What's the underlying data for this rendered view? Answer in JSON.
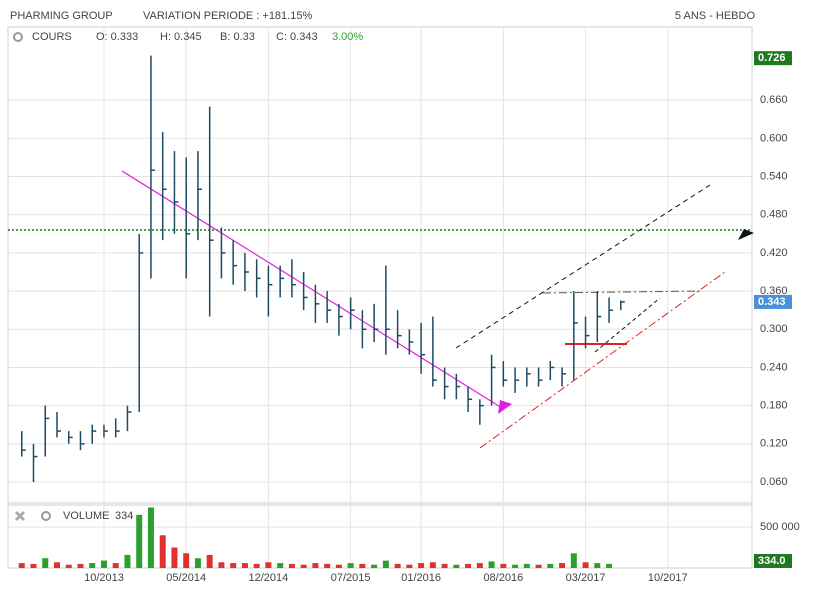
{
  "header": {
    "title": "PHARMING GROUP",
    "variation": "VARIATION PERIODE : +181.15%",
    "period": "5 ANS - HEBDO"
  },
  "chart_data": [
    {
      "type": "ohlc",
      "legend": {
        "name": "COURS",
        "open": "O: 0.333",
        "high": "H: 0.345",
        "low": "B: 0.33",
        "close": "C: 0.343",
        "change": "3.00%"
      },
      "x": [
        "03/2013",
        "04/2013",
        "05/2013",
        "06/2013",
        "07/2013",
        "08/2013",
        "09/2013",
        "10/2013",
        "11/2013",
        "12/2013",
        "01/2014",
        "02/2014",
        "03/2014",
        "04/2014",
        "05/2014",
        "06/2014",
        "07/2014",
        "08/2014",
        "09/2014",
        "10/2014",
        "11/2014",
        "12/2014",
        "01/2015",
        "02/2015",
        "03/2015",
        "04/2015",
        "05/2015",
        "06/2015",
        "07/2015",
        "08/2015",
        "09/2015",
        "10/2015",
        "11/2015",
        "12/2015",
        "01/2016",
        "02/2016",
        "03/2016",
        "04/2016",
        "05/2016",
        "06/2016",
        "07/2016",
        "08/2016",
        "09/2016",
        "10/2016",
        "11/2016",
        "12/2016",
        "01/2017",
        "02/2017",
        "03/2017",
        "04/2017",
        "05/2017",
        "06/2017"
      ],
      "series": [
        {
          "name": "COURS",
          "color": "#1e4a64",
          "high": [
            0.14,
            0.12,
            0.18,
            0.17,
            0.14,
            0.14,
            0.15,
            0.15,
            0.16,
            0.18,
            0.45,
            0.73,
            0.61,
            0.58,
            0.57,
            0.58,
            0.65,
            0.46,
            0.44,
            0.42,
            0.41,
            0.4,
            0.4,
            0.41,
            0.39,
            0.37,
            0.36,
            0.34,
            0.35,
            0.33,
            0.34,
            0.4,
            0.33,
            0.3,
            0.31,
            0.32,
            0.24,
            0.23,
            0.21,
            0.19,
            0.26,
            0.25,
            0.24,
            0.24,
            0.24,
            0.25,
            0.24,
            0.36,
            0.32,
            0.36,
            0.35,
            0.345
          ],
          "low": [
            0.1,
            0.06,
            0.1,
            0.13,
            0.12,
            0.11,
            0.12,
            0.13,
            0.13,
            0.14,
            0.17,
            0.38,
            0.44,
            0.45,
            0.38,
            0.44,
            0.32,
            0.38,
            0.37,
            0.36,
            0.35,
            0.32,
            0.35,
            0.35,
            0.33,
            0.31,
            0.31,
            0.29,
            0.3,
            0.27,
            0.28,
            0.26,
            0.27,
            0.26,
            0.23,
            0.21,
            0.19,
            0.19,
            0.17,
            0.15,
            0.18,
            0.21,
            0.2,
            0.21,
            0.21,
            0.22,
            0.21,
            0.22,
            0.27,
            0.28,
            0.31,
            0.33
          ],
          "close": [
            0.11,
            0.1,
            0.16,
            0.14,
            0.13,
            0.12,
            0.14,
            0.14,
            0.14,
            0.17,
            0.42,
            0.55,
            0.52,
            0.5,
            0.45,
            0.52,
            0.44,
            0.42,
            0.4,
            0.39,
            0.38,
            0.37,
            0.38,
            0.37,
            0.35,
            0.34,
            0.33,
            0.32,
            0.33,
            0.3,
            0.3,
            0.3,
            0.29,
            0.28,
            0.26,
            0.22,
            0.21,
            0.21,
            0.19,
            0.18,
            0.24,
            0.22,
            0.22,
            0.23,
            0.22,
            0.24,
            0.23,
            0.31,
            0.29,
            0.32,
            0.33,
            0.343
          ]
        }
      ],
      "markers": [
        {
          "value": 0.726,
          "color": "#1f7a1f"
        },
        {
          "value": 0.343,
          "color": "#4a90d9"
        }
      ],
      "xlim": [
        "02/2013",
        "05/2018"
      ],
      "xticks": [
        "10/2013",
        "05/2014",
        "12/2014",
        "07/2015",
        "01/2016",
        "08/2016",
        "03/2017",
        "10/2017"
      ],
      "ylim": [
        0.027,
        0.775
      ],
      "yticks": [
        {
          "value": 0.06,
          "label": "0.060"
        },
        {
          "value": 0.12,
          "label": "0.120"
        },
        {
          "value": 0.18,
          "label": "0.180"
        },
        {
          "value": 0.24,
          "label": "0.240"
        },
        {
          "value": 0.3,
          "label": "0.300"
        },
        {
          "value": 0.36,
          "label": "0.360"
        },
        {
          "value": 0.42,
          "label": "0.420"
        },
        {
          "value": 0.48,
          "label": "0.480"
        },
        {
          "value": 0.54,
          "label": "0.540"
        },
        {
          "value": 0.6,
          "label": "0.600"
        },
        {
          "value": 0.66,
          "label": "0.660"
        }
      ],
      "grid": true
    },
    {
      "type": "volume",
      "legend": {
        "name": "VOLUME",
        "last": "334"
      },
      "x": [
        "03/2013",
        "04/2013",
        "05/2013",
        "06/2013",
        "07/2013",
        "08/2013",
        "09/2013",
        "10/2013",
        "11/2013",
        "12/2013",
        "01/2014",
        "02/2014",
        "03/2014",
        "04/2014",
        "05/2014",
        "06/2014",
        "07/2014",
        "08/2014",
        "09/2014",
        "10/2014",
        "11/2014",
        "12/2014",
        "01/2015",
        "02/2015",
        "03/2015",
        "04/2015",
        "05/2015",
        "06/2015",
        "07/2015",
        "08/2015",
        "09/2015",
        "10/2015",
        "11/2015",
        "12/2015",
        "01/2016",
        "02/2016",
        "03/2016",
        "04/2016",
        "05/2016",
        "06/2016",
        "07/2016",
        "08/2016",
        "09/2016",
        "10/2016",
        "11/2016",
        "12/2016",
        "01/2017",
        "02/2017",
        "03/2017",
        "04/2017",
        "05/2017",
        "06/2017"
      ],
      "values": [
        60000,
        50000,
        120000,
        70000,
        40000,
        50000,
        60000,
        90000,
        60000,
        160000,
        650000,
        740000,
        400000,
        250000,
        180000,
        120000,
        160000,
        70000,
        60000,
        60000,
        50000,
        70000,
        60000,
        50000,
        40000,
        60000,
        50000,
        40000,
        60000,
        50000,
        40000,
        90000,
        50000,
        40000,
        60000,
        70000,
        50000,
        40000,
        50000,
        60000,
        80000,
        50000,
        40000,
        50000,
        40000,
        50000,
        60000,
        180000,
        70000,
        60000,
        50000,
        334
      ],
      "colors": [
        "#e03030",
        "#e03030",
        "#2ca02c",
        "#e03030",
        "#e03030",
        "#e03030",
        "#2ca02c",
        "#2ca02c",
        "#e03030",
        "#2ca02c",
        "#2ca02c",
        "#2ca02c",
        "#e03030",
        "#e03030",
        "#e03030",
        "#2ca02c",
        "#e03030",
        "#e03030",
        "#e03030",
        "#e03030",
        "#e03030",
        "#e03030",
        "#2ca02c",
        "#e03030",
        "#e03030",
        "#e03030",
        "#e03030",
        "#e03030",
        "#2ca02c",
        "#e03030",
        "#2ca02c",
        "#2ca02c",
        "#e03030",
        "#e03030",
        "#e03030",
        "#e03030",
        "#e03030",
        "#2ca02c",
        "#e03030",
        "#e03030",
        "#2ca02c",
        "#e03030",
        "#2ca02c",
        "#2ca02c",
        "#e03030",
        "#2ca02c",
        "#e03030",
        "#2ca02c",
        "#e03030",
        "#2ca02c",
        "#2ca02c",
        "#2ca02c"
      ],
      "marker": {
        "value": 334,
        "label": "334.0",
        "color": "#1f7a1f"
      },
      "ylim": [
        0,
        770000
      ],
      "yticks": [
        {
          "value": 500000,
          "label": "500 000"
        }
      ]
    }
  ]
}
